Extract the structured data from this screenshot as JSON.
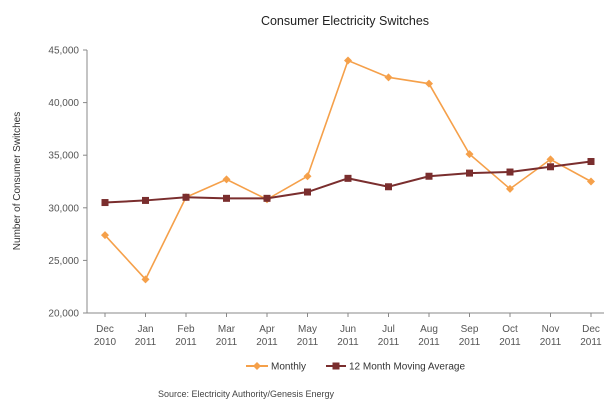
{
  "chart_data": {
    "type": "line",
    "title": "Consumer Electricity Switches",
    "xlabel": "",
    "ylabel": "Number of Consumer Switches",
    "categories": [
      [
        "Dec",
        "2010"
      ],
      [
        "Jan",
        "2011"
      ],
      [
        "Feb",
        "2011"
      ],
      [
        "Mar",
        "2011"
      ],
      [
        "Apr",
        "2011"
      ],
      [
        "May",
        "2011"
      ],
      [
        "Jun",
        "2011"
      ],
      [
        "Jul",
        "2011"
      ],
      [
        "Aug",
        "2011"
      ],
      [
        "Sep",
        "2011"
      ],
      [
        "Oct",
        "2011"
      ],
      [
        "Nov",
        "2011"
      ],
      [
        "Dec",
        "2011"
      ]
    ],
    "ylim": [
      20000,
      45000
    ],
    "yticks": [
      20000,
      25000,
      30000,
      35000,
      40000,
      45000
    ],
    "ytick_labels": [
      "20,000",
      "25,000",
      "30,000",
      "35,000",
      "40,000",
      "45,000"
    ],
    "grid": false,
    "legend_position": "bottom",
    "series": [
      {
        "name": "Monthly",
        "color": "#f5a04a",
        "marker": "diamond",
        "values": [
          27400,
          23200,
          31000,
          32700,
          30800,
          33000,
          44000,
          42400,
          41800,
          35100,
          31800,
          34600,
          32500
        ]
      },
      {
        "name": "12 Month Moving Average",
        "color": "#7a2e2e",
        "marker": "square",
        "values": [
          30500,
          30700,
          31000,
          30900,
          30900,
          31500,
          32800,
          32000,
          33000,
          33300,
          33400,
          33900,
          34400
        ]
      }
    ],
    "source": "Source: Electricity Authority/Genesis Energy"
  }
}
